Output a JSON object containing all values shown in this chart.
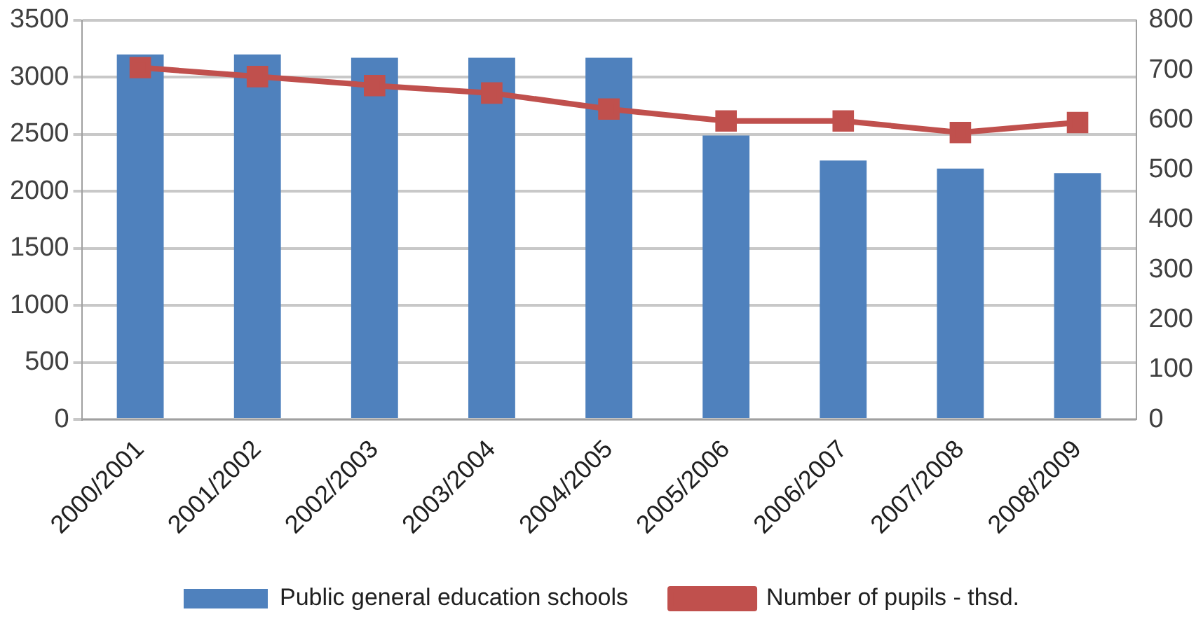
{
  "chart_data": {
    "type": "bar",
    "categories": [
      "2000/2001",
      "2001/2002",
      "2002/2003",
      "2003/2004",
      "2004/2005",
      "2005/2006",
      "2006/2007",
      "2007/2008",
      "2008/2009"
    ],
    "series": [
      {
        "name": "Public general education schools",
        "color": "#4f81bd",
        "values": [
          3200,
          3200,
          3170,
          3170,
          3170,
          2490,
          2270,
          2200,
          2160
        ]
      },
      {
        "name": "Number of pupils - thsd.",
        "type": "line",
        "axis": "y2",
        "color": "#c0504d",
        "marker": "square",
        "values": [
          705,
          687,
          669,
          654,
          622,
          598,
          598,
          575,
          595
        ]
      }
    ],
    "ylim": [
      0,
      3500
    ],
    "yticks": [
      0,
      500,
      1000,
      1500,
      2000,
      2500,
      3000,
      3500
    ],
    "y2lim": [
      0,
      800
    ],
    "y2ticks": [
      0,
      100,
      200,
      300,
      400,
      500,
      600,
      700,
      800
    ],
    "grid": "y",
    "legend": "bottom"
  }
}
